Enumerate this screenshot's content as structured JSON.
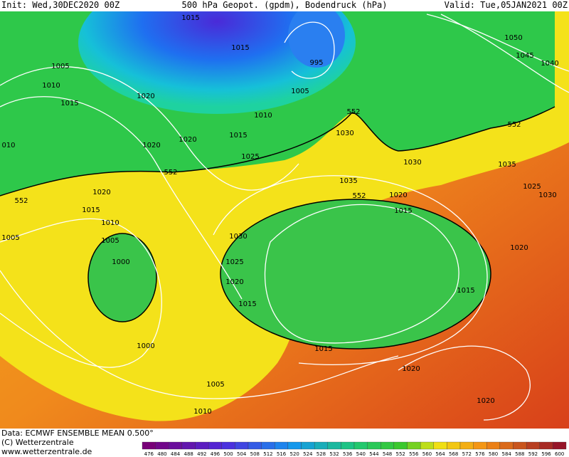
{
  "header": {
    "init": "Init: Wed,30DEC2020 00Z",
    "title": "500 hPa Geopot. (gpdm), Bodendruck (hPa)",
    "valid": "Valid: Tue,05JAN2021 00Z"
  },
  "contour_labels": [
    "1015",
    "1005",
    "1010",
    "1015",
    "1020",
    "1015",
    "995",
    "1005",
    "552",
    "1010",
    "1030",
    "1020",
    "1015",
    "1020",
    "010",
    "1025",
    "552",
    "1030",
    "1035",
    "1050",
    "1045",
    "1040",
    "552",
    "1020",
    "552",
    "1035",
    "552",
    "1020",
    "1025",
    "1030",
    "1015",
    "1015",
    "1010",
    "1005",
    "1005",
    "1030",
    "1020",
    "1000",
    "1025",
    "1020",
    "1015",
    "1015",
    "1000",
    "1015",
    "1020",
    "1005",
    "1020",
    "1010"
  ],
  "footer": {
    "data": "Data: ECMWF ENSEMBLE MEAN 0.500°",
    "copyright": "(C) Wetterzentrale",
    "url": "www.wetterzentrale.de"
  },
  "colorbar": [
    476,
    480,
    484,
    488,
    492,
    496,
    500,
    504,
    508,
    512,
    516,
    520,
    524,
    528,
    532,
    536,
    540,
    544,
    548,
    552,
    556,
    560,
    564,
    568,
    572,
    576,
    580,
    584,
    588,
    592,
    596,
    600
  ]
}
